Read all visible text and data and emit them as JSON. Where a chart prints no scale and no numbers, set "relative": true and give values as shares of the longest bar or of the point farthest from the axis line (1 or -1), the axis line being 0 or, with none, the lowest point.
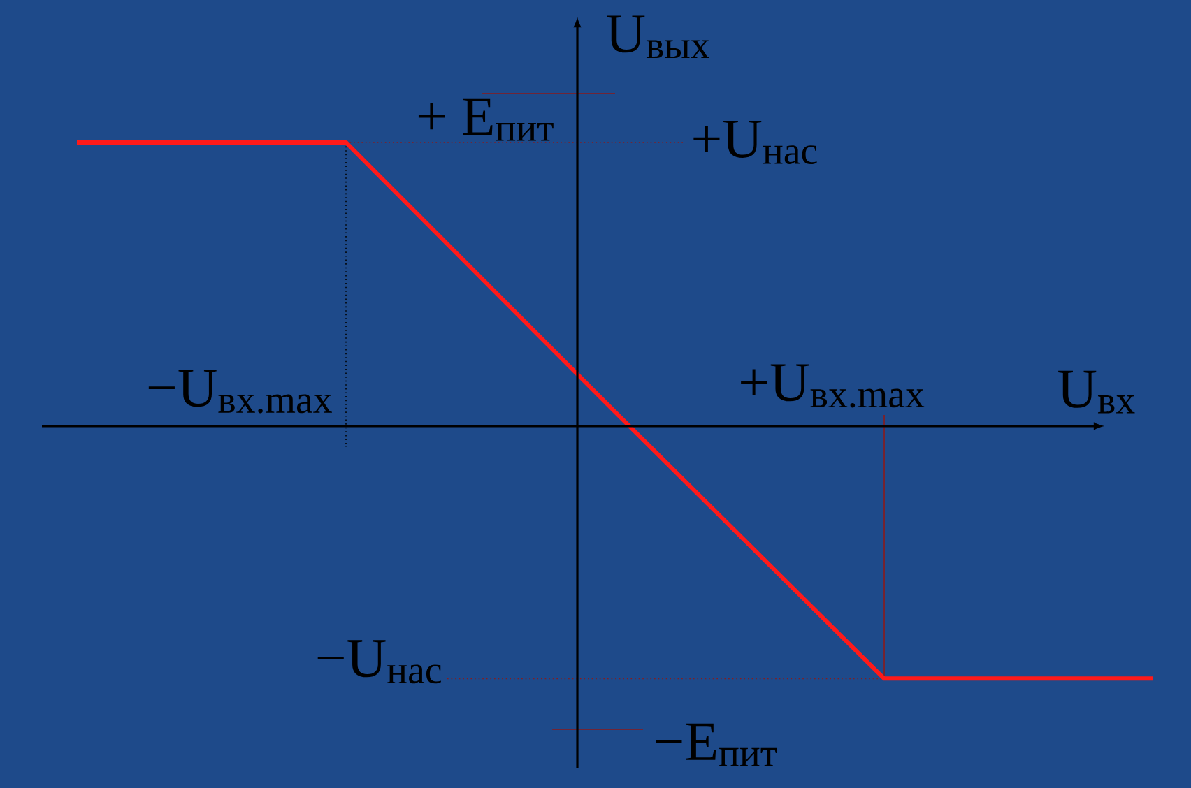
{
  "chart_data": {
    "type": "line",
    "relative": true,
    "xlabel": "U$_{вх}$",
    "ylabel": "U$_{вых}$",
    "categories": [
      null,
      null,
      null,
      null,
      null
    ],
    "series": [
      {
        "color": "#ff1a1a",
        "values": [
          1,
          1,
          0.05,
          -0.89,
          -0.89
        ]
      }
    ],
    "annotations": [
      "+ E$_{пит}$",
      "+U$_{нас}$",
      "−U$_{вх.max}$",
      "+U$_{вх.max}$",
      "−U$_{нас}$",
      "−E$_{пит}$"
    ],
    "marker": "none",
    "line_style": "solid"
  }
}
